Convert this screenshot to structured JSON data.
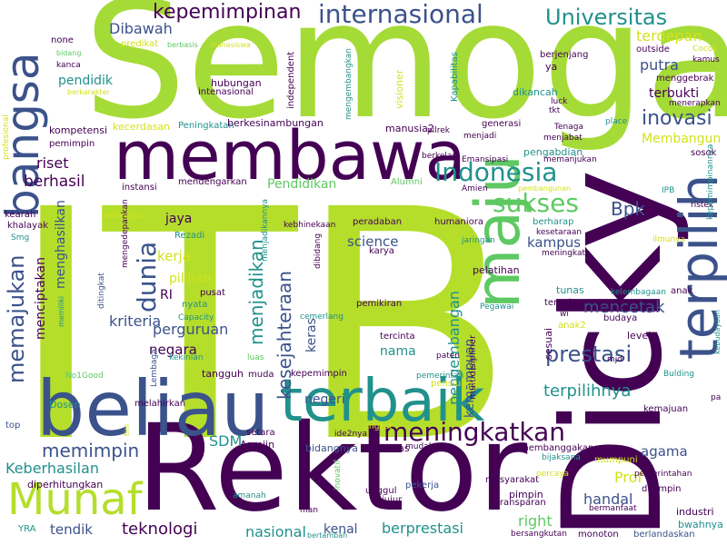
{
  "palette": {
    "dark_purple": "#440154",
    "indigo": "#3b528b",
    "teal": "#21918c",
    "green": "#5ec962",
    "yellow_green": "#a5db36",
    "yellow": "#d2e21b",
    "light": "#b5de2b"
  },
  "words": [
    {
      "text": "ITB",
      "color": "#b5de2b",
      "weight": 1.0
    },
    {
      "text": "Semoga",
      "color": "#a5db36",
      "weight": 0.62
    },
    {
      "text": "Dicky",
      "color": "#440154",
      "weight": 0.6
    },
    {
      "text": "Rektor",
      "color": "#440154",
      "weight": 0.5
    },
    {
      "text": "membawa",
      "color": "#440154",
      "weight": 0.32
    },
    {
      "text": "beliau",
      "color": "#3b528b",
      "weight": 0.38
    },
    {
      "text": "terbaik",
      "color": "#21918c",
      "weight": 0.3
    },
    {
      "text": "maju",
      "color": "#5ec962",
      "weight": 0.28
    },
    {
      "text": "terpilih",
      "color": "#3b528b",
      "weight": 0.28
    },
    {
      "text": "bangsa",
      "color": "#3b528b",
      "weight": 0.22
    },
    {
      "text": "Munaf",
      "color": "#b5de2b",
      "weight": 0.18
    },
    {
      "text": "Indonesia",
      "color": "#21918c",
      "weight": 0.1
    },
    {
      "text": "internasional",
      "color": "#3b528b",
      "weight": 0.1
    },
    {
      "text": "Universitas",
      "color": "#21918c",
      "weight": 0.08
    },
    {
      "text": "kepemimpinan",
      "color": "#440154",
      "weight": 0.08
    },
    {
      "text": "sukses",
      "color": "#5ec962",
      "weight": 0.09
    },
    {
      "text": "dunia",
      "color": "#3b528b",
      "weight": 0.09
    },
    {
      "text": "meningkatkan",
      "color": "#440154",
      "weight": 0.1
    },
    {
      "text": "memajukan",
      "color": "#3b528b",
      "weight": 0.08
    },
    {
      "text": "prestasi",
      "color": "#3b528b",
      "weight": 0.08
    },
    {
      "text": "inovasi",
      "color": "#3b528b",
      "weight": 0.07
    },
    {
      "text": "kesejahteraan",
      "color": "#3b528b",
      "weight": 0.07
    },
    {
      "text": "menjadikan",
      "color": "#21918c",
      "weight": 0.06
    },
    {
      "text": "Dibawah",
      "color": "#3b528b",
      "weight": 0.05
    },
    {
      "text": "terdepan",
      "color": "#d2e21b",
      "weight": 0.05
    },
    {
      "text": "putra",
      "color": "#3b528b",
      "weight": 0.05
    },
    {
      "text": "terbukti",
      "color": "#440154",
      "weight": 0.04
    },
    {
      "text": "Bpk",
      "color": "#3b528b",
      "weight": 0.06
    },
    {
      "text": "mencetak",
      "color": "#3b528b",
      "weight": 0.06
    },
    {
      "text": "pengembangan",
      "color": "#21918c",
      "weight": 0.05
    },
    {
      "text": "kemampuan",
      "color": "#3b528b",
      "weight": 0.04
    },
    {
      "text": "terpilihnya",
      "color": "#21918c",
      "weight": 0.05
    },
    {
      "text": "memimpin",
      "color": "#3b528b",
      "weight": 0.06
    },
    {
      "text": "Keberhasilan",
      "color": "#21918c",
      "weight": 0.05
    },
    {
      "text": "teknologi",
      "color": "#440154",
      "weight": 0.05
    },
    {
      "text": "tendik",
      "color": "#3b528b",
      "weight": 0.04
    },
    {
      "text": "berprestasi",
      "color": "#21918c",
      "weight": 0.05
    },
    {
      "text": "nasional",
      "color": "#21918c",
      "weight": 0.05
    },
    {
      "text": "kenal",
      "color": "#3b528b",
      "weight": 0.04
    },
    {
      "text": "handal",
      "color": "#3b528b",
      "weight": 0.05
    },
    {
      "text": "agama",
      "color": "#3b528b",
      "weight": 0.04
    },
    {
      "text": "Prof",
      "color": "#d2e21b",
      "weight": 0.05
    },
    {
      "text": "right",
      "color": "#5ec962",
      "weight": 0.04
    },
    {
      "text": "SDM",
      "color": "#21918c",
      "weight": 0.04
    },
    {
      "text": "berhasil",
      "color": "#440154",
      "weight": 0.04
    },
    {
      "text": "riset",
      "color": "#440154",
      "weight": 0.04
    },
    {
      "text": "pendidik",
      "color": "#21918c",
      "weight": 0.035
    },
    {
      "text": "kriteria",
      "color": "#3b528b",
      "weight": 0.04
    },
    {
      "text": "negara",
      "color": "#440154",
      "weight": 0.04
    },
    {
      "text": "perguruan",
      "color": "#3b528b",
      "weight": 0.04
    },
    {
      "text": "kerja",
      "color": "#d2e21b",
      "weight": 0.035
    },
    {
      "text": "pilihan",
      "color": "#d2e21b",
      "weight": 0.035
    },
    {
      "text": "jaya",
      "color": "#440154",
      "weight": 0.03
    },
    {
      "text": "science",
      "color": "#3b528b",
      "weight": 0.035
    },
    {
      "text": "kampus",
      "color": "#3b528b",
      "weight": 0.035
    },
    {
      "text": "keras",
      "color": "#3b528b",
      "weight": 0.03
    },
    {
      "text": "nama",
      "color": "#21918c",
      "weight": 0.035
    },
    {
      "text": "negeri",
      "color": "#3b528b",
      "weight": 0.035
    },
    {
      "text": "Membangun",
      "color": "#d2e21b",
      "weight": 0.03
    },
    {
      "text": "Pendidikan",
      "color": "#5ec962",
      "weight": 0.03
    },
    {
      "text": "menghasilkan",
      "color": "#3b528b",
      "weight": 0.03
    },
    {
      "text": "menciptakan",
      "color": "#440154",
      "weight": 0.03
    },
    {
      "text": "hubungan",
      "color": "#440154",
      "weight": 0.02
    },
    {
      "text": "intenasional",
      "color": "#440154",
      "weight": 0.02
    },
    {
      "text": "berkesinambungan",
      "color": "#440154",
      "weight": 0.02
    },
    {
      "text": "manusia2",
      "color": "#440154",
      "weight": 0.02
    },
    {
      "text": "kompetensi",
      "color": "#440154",
      "weight": 0.02
    },
    {
      "text": "pemimpin",
      "color": "#440154",
      "weight": 0.02
    },
    {
      "text": "kecerdasan",
      "color": "#d2e21b",
      "weight": 0.02
    },
    {
      "text": "Peningkatan",
      "color": "#21918c",
      "weight": 0.02
    },
    {
      "text": "mendengarkan",
      "color": "#440154",
      "weight": 0.02
    },
    {
      "text": "instansi",
      "color": "#440154",
      "weight": 0.018
    },
    {
      "text": "khalayak",
      "color": "#440154",
      "weight": 0.018
    },
    {
      "text": "kearah",
      "color": "#440154",
      "weight": 0.018
    },
    {
      "text": "Smg",
      "color": "#21918c",
      "weight": 0.015
    },
    {
      "text": "none",
      "color": "#440154",
      "weight": 0.015
    },
    {
      "text": "kanca",
      "color": "#440154",
      "weight": 0.015
    },
    {
      "text": "bidang",
      "color": "#5ec962",
      "weight": 0.015
    },
    {
      "text": "berkarakter",
      "color": "#d2e21b",
      "weight": 0.015
    },
    {
      "text": "berbasis",
      "color": "#5ec962",
      "weight": 0.015
    },
    {
      "text": "manasiswa",
      "color": "#d2e21b",
      "weight": 0.015
    },
    {
      "text": "predikat",
      "color": "#d2e21b",
      "weight": 0.015
    },
    {
      "text": "profesional",
      "color": "#d2e21b",
      "weight": 0.015
    },
    {
      "text": "sehinggia",
      "color": "#d2e21b",
      "weight": 0.015
    },
    {
      "text": "Rezadi",
      "color": "#21918c",
      "weight": 0.015
    },
    {
      "text": "mengedepankan",
      "color": "#440154",
      "weight": 0.015
    },
    {
      "text": "menjadikannya",
      "color": "#21918c",
      "weight": 0.015
    },
    {
      "text": "ditingkat",
      "color": "#3b528b",
      "weight": 0.015
    },
    {
      "text": "memiliki",
      "color": "#21918c",
      "weight": 0.015
    },
    {
      "text": "pusat",
      "color": "#440154",
      "weight": 0.018
    },
    {
      "text": "nyata",
      "color": "#21918c",
      "weight": 0.018
    },
    {
      "text": "RI",
      "color": "#440154",
      "weight": 0.03
    },
    {
      "text": "Capacity",
      "color": "#21918c",
      "weight": 0.015
    },
    {
      "text": "kekinian",
      "color": "#21918c",
      "weight": 0.015
    },
    {
      "text": "luas",
      "color": "#5ec962",
      "weight": 0.015
    },
    {
      "text": "Lembaga",
      "color": "#3b528b",
      "weight": 0.015
    },
    {
      "text": "No1Good",
      "color": "#5ec962",
      "weight": 0.015
    },
    {
      "text": "tangguh",
      "color": "#440154",
      "weight": 0.02
    },
    {
      "text": "muda",
      "color": "#440154",
      "weight": 0.018
    },
    {
      "text": "kepemimpin",
      "color": "#440154",
      "weight": 0.018
    },
    {
      "text": "pemerintah",
      "color": "#21918c",
      "weight": 0.015
    },
    {
      "text": "top",
      "color": "#3b528b",
      "weight": 0.015
    },
    {
      "text": "Dosen",
      "color": "#21918c",
      "weight": 0.018
    },
    {
      "text": "melahirkan",
      "color": "#440154",
      "weight": 0.018
    },
    {
      "text": "setara",
      "color": "#440154",
      "weight": 0.015
    },
    {
      "text": "Aamiin",
      "color": "#440154",
      "weight": 0.018
    },
    {
      "text": "bidangnya",
      "color": "#3b528b",
      "weight": 0.018
    },
    {
      "text": "tingkat",
      "color": "#d2e21b",
      "weight": 0.015
    },
    {
      "text": "ide2nya",
      "color": "#440154",
      "weight": 0.015
    },
    {
      "text": "mudah2an",
      "color": "#440154",
      "weight": 0.015
    },
    {
      "text": "cerdas",
      "color": "#440154",
      "weight": 0.018
    },
    {
      "text": "diperhitungkan",
      "color": "#440154",
      "weight": 0.018
    },
    {
      "text": "amanah",
      "color": "#21918c",
      "weight": 0.015
    },
    {
      "text": "man",
      "color": "#440154",
      "weight": 0.015
    },
    {
      "text": "inovatif",
      "color": "#5ec962",
      "weight": 0.015
    },
    {
      "text": "bertambah",
      "color": "#21918c",
      "weight": 0.015
    },
    {
      "text": "YRA",
      "color": "#21918c",
      "weight": 0.015
    },
    {
      "text": "unggul",
      "color": "#440154",
      "weight": 0.015
    },
    {
      "text": "jujur",
      "color": "#440154",
      "weight": 0.015
    },
    {
      "text": "pekerja",
      "color": "#3b528b",
      "weight": 0.015
    },
    {
      "text": "masyarakat",
      "color": "#440154",
      "weight": 0.015
    },
    {
      "text": "transparan",
      "color": "#440154",
      "weight": 0.015
    },
    {
      "text": "pimpin",
      "color": "#440154",
      "weight": 0.018
    },
    {
      "text": "bermanfaat",
      "color": "#440154",
      "weight": 0.015
    },
    {
      "text": "bersangkutan",
      "color": "#440154",
      "weight": 0.015
    },
    {
      "text": "monoton",
      "color": "#440154",
      "weight": 0.015
    },
    {
      "text": "berlandaskan",
      "color": "#3b528b",
      "weight": 0.015
    },
    {
      "text": "bijaksana",
      "color": "#21918c",
      "weight": 0.015
    },
    {
      "text": "membanggakan",
      "color": "#440154",
      "weight": 0.015
    },
    {
      "text": "mumpuni",
      "color": "#d2e21b",
      "weight": 0.015
    },
    {
      "text": "percaya",
      "color": "#d2e21b",
      "weight": 0.015
    },
    {
      "text": "independent",
      "color": "#440154",
      "weight": 0.015
    },
    {
      "text": "mengembangkan",
      "color": "#21918c",
      "weight": 0.015
    },
    {
      "text": "visioner",
      "color": "#d2e21b",
      "weight": 0.015
    },
    {
      "text": "Kapabilitas",
      "color": "#21918c",
      "weight": 0.015
    },
    {
      "text": "berjenjang",
      "color": "#440154",
      "weight": 0.015
    },
    {
      "text": "outside",
      "color": "#440154",
      "weight": 0.015
    },
    {
      "text": "Cocok",
      "color": "#d2e21b",
      "weight": 0.012
    },
    {
      "text": "kamus",
      "color": "#440154",
      "weight": 0.012
    },
    {
      "text": "ya",
      "color": "#440154",
      "weight": 0.018
    },
    {
      "text": "menggebrak",
      "color": "#440154",
      "weight": 0.015
    },
    {
      "text": "menerapkan",
      "color": "#440154",
      "weight": 0.015
    },
    {
      "text": "dikancah",
      "color": "#21918c",
      "weight": 0.015
    },
    {
      "text": "luck",
      "color": "#440154",
      "weight": 0.012
    },
    {
      "text": "tkt",
      "color": "#440154",
      "weight": 0.012
    },
    {
      "text": "place",
      "color": "#21918c",
      "weight": 0.012
    },
    {
      "text": "generasi",
      "color": "#440154",
      "weight": 0.015
    },
    {
      "text": "Tenaga",
      "color": "#440154",
      "weight": 0.012
    },
    {
      "text": "menjabat",
      "color": "#440154",
      "weight": 0.012
    },
    {
      "text": "menjadi",
      "color": "#440154",
      "weight": 0.012
    },
    {
      "text": "pilrek",
      "color": "#440154",
      "weight": 0.012
    },
    {
      "text": "berkelas",
      "color": "#440154",
      "weight": 0.012
    },
    {
      "text": "Emansipasi",
      "color": "#440154",
      "weight": 0.012
    },
    {
      "text": "pengabdian",
      "color": "#21918c",
      "weight": 0.015
    },
    {
      "text": "memanjukan",
      "color": "#440154",
      "weight": 0.012
    },
    {
      "text": "sosok",
      "color": "#440154",
      "weight": 0.015
    },
    {
      "text": "Alumni",
      "color": "#5ec962",
      "weight": 0.015
    },
    {
      "text": "Amien",
      "color": "#440154",
      "weight": 0.012
    },
    {
      "text": "pembangunan",
      "color": "#d2e21b",
      "weight": 0.012
    },
    {
      "text": "IPB",
      "color": "#21918c",
      "weight": 0.012
    },
    {
      "text": "ristek",
      "color": "#440154",
      "weight": 0.012
    },
    {
      "text": "peradaban",
      "color": "#440154",
      "weight": 0.015
    },
    {
      "text": "humaniora",
      "color": "#440154",
      "weight": 0.015
    },
    {
      "text": "berharap",
      "color": "#21918c",
      "weight": 0.015
    },
    {
      "text": "kesetaraan",
      "color": "#440154",
      "weight": 0.012
    },
    {
      "text": "jaringan",
      "color": "#21918c",
      "weight": 0.012
    },
    {
      "text": "meningkat",
      "color": "#440154",
      "weight": 0.012
    },
    {
      "text": "ilmunya",
      "color": "#d2e21b",
      "weight": 0.012
    },
    {
      "text": "kepemimpinannya",
      "color": "#21918c",
      "weight": 0.012
    },
    {
      "text": "karya",
      "color": "#440154",
      "weight": 0.015
    },
    {
      "text": "kebhinekaan",
      "color": "#440154",
      "weight": 0.012
    },
    {
      "text": "dibidang",
      "color": "#440154",
      "weight": 0.012
    },
    {
      "text": "pelatihan",
      "color": "#440154",
      "weight": 0.015
    },
    {
      "text": "tunas",
      "color": "#21918c",
      "weight": 0.018
    },
    {
      "text": "terpaku",
      "color": "#440154",
      "weight": 0.015
    },
    {
      "text": "kelembagaan",
      "color": "#21918c",
      "weight": 0.012
    },
    {
      "text": "anak",
      "color": "#440154",
      "weight": 0.015
    },
    {
      "text": "pemikiran",
      "color": "#440154",
      "weight": 0.015
    },
    {
      "text": "cemerlang",
      "color": "#21918c",
      "weight": 0.012
    },
    {
      "text": "tercinta",
      "color": "#440154",
      "weight": 0.015
    },
    {
      "text": "Pegawai",
      "color": "#21918c",
      "weight": 0.012
    },
    {
      "text": "sesuai",
      "color": "#440154",
      "weight": 0.015
    },
    {
      "text": "CaRek",
      "color": "#440154",
      "weight": 0.015
    },
    {
      "text": "anak2",
      "color": "#d2e21b",
      "weight": 0.015
    },
    {
      "text": "budaya",
      "color": "#440154",
      "weight": 0.015
    },
    {
      "text": "wi",
      "color": "#440154",
      "weight": 0.012
    },
    {
      "text": "level",
      "color": "#440154",
      "weight": 0.015
    },
    {
      "text": "mjd",
      "color": "#440154",
      "weight": 0.012
    },
    {
      "text": "paten",
      "color": "#440154",
      "weight": 0.012
    },
    {
      "text": "multidisipliner",
      "color": "#440154",
      "weight": 0.015
    },
    {
      "text": "pensiunan",
      "color": "#d2e21b",
      "weight": 0.015
    },
    {
      "text": "Bulding",
      "color": "#21918c",
      "weight": 0.012
    },
    {
      "text": "kebudayaan",
      "color": "#21918c",
      "weight": 0.012
    },
    {
      "text": "pa",
      "color": "#440154",
      "weight": 0.012
    },
    {
      "text": "kemajuan",
      "color": "#440154",
      "weight": 0.015
    },
    {
      "text": "pemerintahan",
      "color": "#440154",
      "weight": 0.012
    },
    {
      "text": "dipimpin",
      "color": "#440154",
      "weight": 0.015
    },
    {
      "text": "industri",
      "color": "#440154",
      "weight": 0.015
    },
    {
      "text": "bwahnya",
      "color": "#21918c",
      "weight": 0.015
    },
    {
      "text": "tim",
      "color": "#d2e21b",
      "weight": 0.012
    }
  ]
}
